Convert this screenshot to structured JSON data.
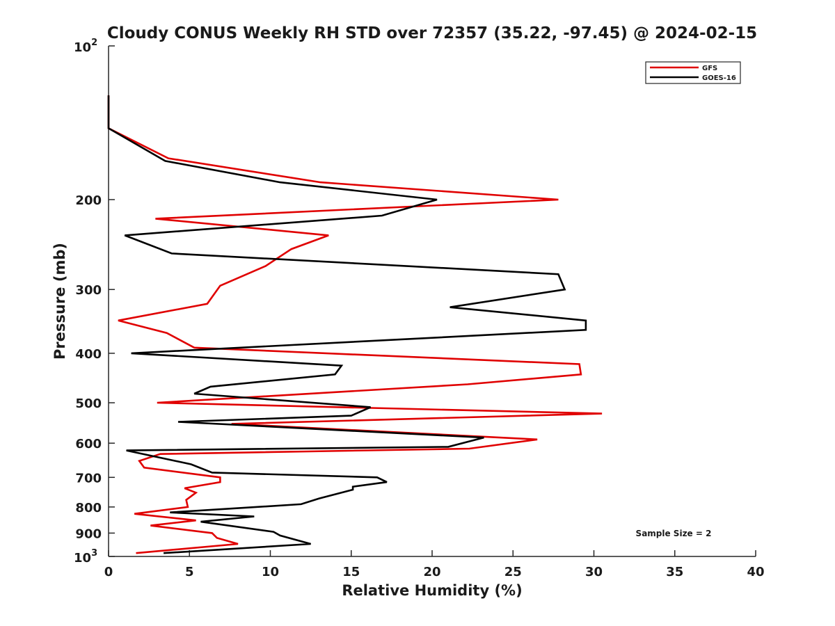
{
  "chart_data": {
    "type": "line",
    "title": "Cloudy CONUS Weekly RH STD over 72357 (35.22, -97.45) @ 2024-02-15",
    "xlabel": "Relative Humidity (%)",
    "ylabel": "Pressure (mb)",
    "xlim": [
      0,
      40
    ],
    "ylim": [
      100,
      1000
    ],
    "y_scale": "log",
    "y_reversed": true,
    "grid": false,
    "legend_position": "top-right",
    "x_ticks": [
      "0",
      "5",
      "10",
      "15",
      "20",
      "25",
      "30",
      "35",
      "40"
    ],
    "y_ticks": [
      {
        "value": 100,
        "base": "10",
        "exp": "2"
      },
      {
        "value": 200,
        "label": "200"
      },
      {
        "value": 300,
        "label": "300"
      },
      {
        "value": 400,
        "label": "400"
      },
      {
        "value": 500,
        "label": "500"
      },
      {
        "value": 600,
        "label": "600"
      },
      {
        "value": 700,
        "label": "700"
      },
      {
        "value": 800,
        "label": "800"
      },
      {
        "value": 900,
        "label": "900"
      },
      {
        "value": 1000,
        "base": "10",
        "exp": "3"
      }
    ],
    "annotation": "Sample Size = 2",
    "series": [
      {
        "name": "GFS",
        "color": "#e00000",
        "points": [
          [
            0,
            125
          ],
          [
            0,
            145
          ],
          [
            3.7,
            166
          ],
          [
            13.1,
            185
          ],
          [
            27.8,
            200
          ],
          [
            2.9,
            218
          ],
          [
            13.6,
            235
          ],
          [
            11.3,
            250
          ],
          [
            9.7,
            270
          ],
          [
            6.9,
            295
          ],
          [
            6.1,
            320
          ],
          [
            0.6,
            345
          ],
          [
            3.6,
            365
          ],
          [
            5.3,
            390
          ],
          [
            29.1,
            420
          ],
          [
            29.2,
            440
          ],
          [
            22.2,
            460
          ],
          [
            3.0,
            500
          ],
          [
            30.5,
            525
          ],
          [
            7.6,
            550
          ],
          [
            26.5,
            590
          ],
          [
            22.3,
            615
          ],
          [
            3.2,
            630
          ],
          [
            1.9,
            650
          ],
          [
            2.2,
            670
          ],
          [
            6.9,
            700
          ],
          [
            6.9,
            715
          ],
          [
            4.7,
            735
          ],
          [
            5.4,
            750
          ],
          [
            4.8,
            775
          ],
          [
            4.9,
            800
          ],
          [
            1.6,
            825
          ],
          [
            5.4,
            850
          ],
          [
            2.6,
            870
          ],
          [
            6.4,
            900
          ],
          [
            6.7,
            920
          ],
          [
            8.0,
            945
          ],
          [
            1.7,
            985
          ]
        ]
      },
      {
        "name": "GOES-16",
        "color": "#000000",
        "points": [
          [
            0,
            125
          ],
          [
            0,
            145
          ],
          [
            3.5,
            168
          ],
          [
            10.6,
            185
          ],
          [
            20.3,
            200
          ],
          [
            16.9,
            215
          ],
          [
            1.0,
            235
          ],
          [
            3.9,
            255
          ],
          [
            27.8,
            280
          ],
          [
            28.2,
            300
          ],
          [
            21.1,
            325
          ],
          [
            29.5,
            345
          ],
          [
            29.5,
            360
          ],
          [
            1.4,
            400
          ],
          [
            14.4,
            423
          ],
          [
            14.0,
            440
          ],
          [
            6.3,
            465
          ],
          [
            5.3,
            480
          ],
          [
            16.2,
            510
          ],
          [
            15.0,
            530
          ],
          [
            4.3,
            545
          ],
          [
            23.2,
            585
          ],
          [
            21.0,
            610
          ],
          [
            1.1,
            620
          ],
          [
            5.1,
            660
          ],
          [
            6.4,
            685
          ],
          [
            16.6,
            700
          ],
          [
            17.2,
            715
          ],
          [
            15.1,
            730
          ],
          [
            15.1,
            740
          ],
          [
            13.0,
            770
          ],
          [
            11.9,
            790
          ],
          [
            3.8,
            820
          ],
          [
            9.0,
            835
          ],
          [
            5.7,
            855
          ],
          [
            10.2,
            895
          ],
          [
            10.6,
            910
          ],
          [
            12.5,
            945
          ],
          [
            3.4,
            985
          ]
        ]
      }
    ]
  }
}
